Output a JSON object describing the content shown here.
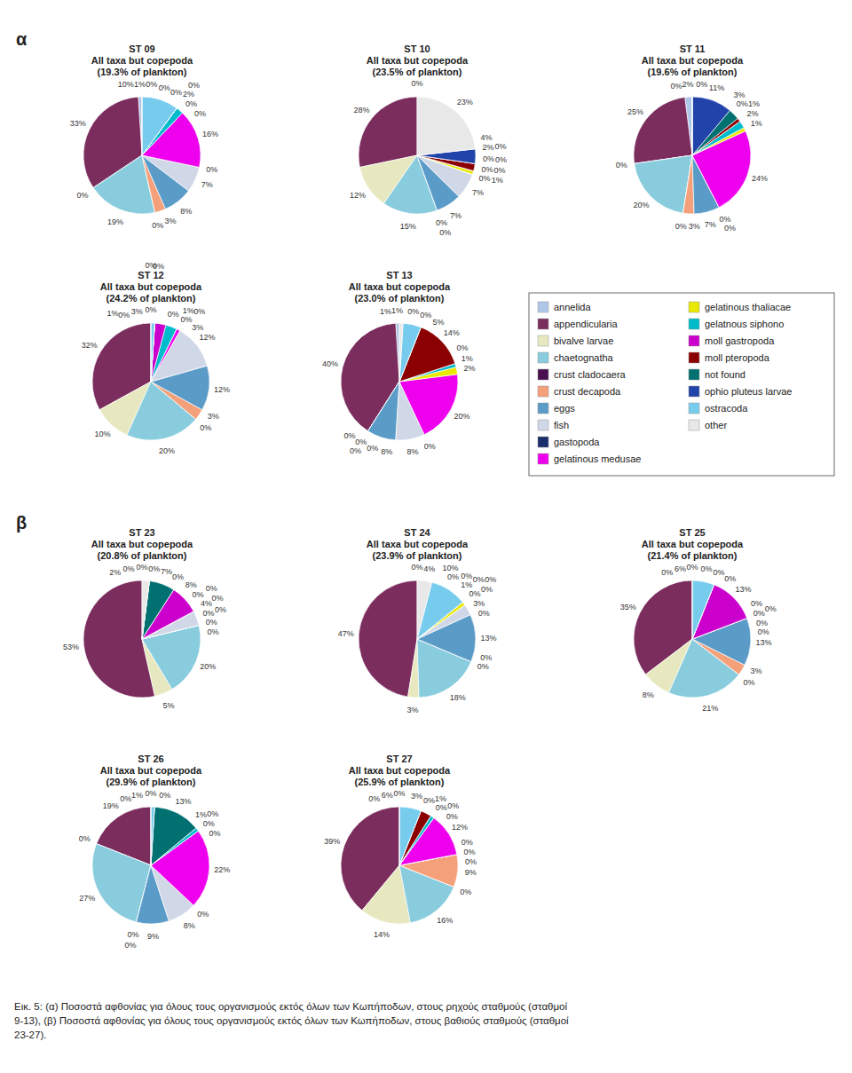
{
  "chart_data": [
    {
      "type": "pie",
      "title": "ST 09",
      "subtitle": "All taxa but copepoda\n(19.3% of plankton)",
      "categories": [
        "annelida",
        "appendicularia",
        "bivalve larvae",
        "chaetognatha",
        "crust cladocaera",
        "crust decapoda",
        "eggs",
        "fish",
        "gastopoda",
        "gelatinous medusae",
        "gelatinous thaliacae",
        "gelatnous siphono",
        "moll gastropoda",
        "moll pteropoda",
        "not found",
        "ophio pluteus larvae",
        "ostracoda",
        "other"
      ],
      "values": [
        1,
        33,
        0,
        19,
        0,
        3,
        8,
        7,
        0,
        16,
        0,
        2,
        0,
        0,
        0,
        0,
        10,
        0
      ],
      "value_labels": [
        "1%",
        "33%",
        "0%",
        "19%",
        "0%",
        "3%",
        "8%",
        "7%",
        "0%",
        "16%",
        "0%",
        "2%",
        "0%",
        "0%",
        "0%",
        "0%",
        "10%",
        "0%"
      ],
      "colors": [
        "#aec6e8",
        "#7b2d5e",
        "#e8e8c0",
        "#88ccdd",
        "#4a1050",
        "#f4a07a",
        "#5b9bc8",
        "#d0d8e8",
        "#1a2e6b",
        "#ee00ee",
        "#e8e800",
        "#00bbcc",
        "#cc00cc",
        "#8b0000",
        "#007070",
        "#2244aa",
        "#77ccee",
        "#e8e8e8"
      ],
      "data_labels": true,
      "legend": "right",
      "annotations": [
        "α"
      ]
    },
    {
      "type": "pie",
      "title": "ST 10",
      "subtitle": "All taxa but copepoda\n(23.5% of plankton)",
      "categories": [
        "annelida",
        "appendicularia",
        "bivalve larvae",
        "chaetognatha",
        "crust cladocaera",
        "crust decapoda",
        "eggs",
        "fish",
        "gastopoda",
        "gelatinous medusae",
        "gelatinous thaliacae",
        "gelatnous siphono",
        "moll gastropoda",
        "moll pteropoda",
        "not found",
        "ophio pluteus larvae",
        "ostracoda",
        "other"
      ],
      "values": [
        0,
        28,
        12,
        15,
        0,
        0,
        7,
        7,
        0,
        0,
        1,
        0,
        0,
        2,
        0,
        4,
        0,
        23
      ],
      "value_labels": [
        "0%",
        "28%",
        "12%",
        "15%",
        "0%",
        "0%",
        "7%",
        "7%",
        "0%",
        "0%",
        "1%",
        "0%",
        "0%",
        "2%",
        "0%",
        "4%",
        "0%",
        "23%"
      ],
      "colors": [
        "#aec6e8",
        "#7b2d5e",
        "#e8e8c0",
        "#88ccdd",
        "#4a1050",
        "#f4a07a",
        "#5b9bc8",
        "#d0d8e8",
        "#1a2e6b",
        "#ee00ee",
        "#e8e800",
        "#00bbcc",
        "#cc00cc",
        "#8b0000",
        "#007070",
        "#2244aa",
        "#77ccee",
        "#e8e8e8"
      ],
      "data_labels": true
    },
    {
      "type": "pie",
      "title": "ST 11",
      "subtitle": "All taxa but copepoda\n(19.6% of plankton)",
      "categories": [
        "annelida",
        "appendicularia",
        "bivalve larvae",
        "chaetognatha",
        "crust cladocaera",
        "crust decapoda",
        "eggs",
        "fish",
        "gastopoda",
        "gelatinous medusae",
        "gelatinous thaliacae",
        "gelatnous siphono",
        "moll gastropoda",
        "moll pteropoda",
        "not found",
        "ophio pluteus larvae",
        "ostracoda",
        "other"
      ],
      "values": [
        2,
        25,
        0,
        20,
        0,
        3,
        7,
        0,
        0,
        24,
        1,
        2,
        0,
        1,
        3,
        11,
        0,
        0
      ],
      "value_labels": [
        "2%",
        "25%",
        "0%",
        "20%",
        "0%",
        "3%",
        "7%",
        "0%",
        "0%",
        "24%",
        "1%",
        "2%",
        "0%",
        "1%",
        "3%",
        "11%",
        "0%",
        "0%"
      ],
      "colors": [
        "#aec6e8",
        "#7b2d5e",
        "#e8e8c0",
        "#88ccdd",
        "#4a1050",
        "#f4a07a",
        "#5b9bc8",
        "#d0d8e8",
        "#1a2e6b",
        "#ee00ee",
        "#e8e800",
        "#00bbcc",
        "#cc00cc",
        "#8b0000",
        "#007070",
        "#2244aa",
        "#77ccee",
        "#e8e8e8"
      ],
      "data_labels": true
    },
    {
      "type": "pie",
      "title": "ST 12",
      "subtitle": "All taxa but copepoda\n(24.2% of plankton)",
      "categories": [
        "annelida",
        "appendicularia",
        "bivalve larvae",
        "chaetognatha",
        "crust cladocaera",
        "crust decapoda",
        "eggs",
        "fish",
        "gastopoda",
        "gelatinous medusae",
        "gelatinous thaliacae",
        "gelatnous siphono",
        "moll gastropoda",
        "moll pteropoda",
        "not found",
        "ophio pluteus larvae",
        "ostracoda",
        "other"
      ],
      "values": [
        0,
        32,
        10,
        20,
        0,
        3,
        12,
        12,
        0,
        1,
        0,
        3,
        3,
        0,
        0,
        0,
        1,
        0
      ],
      "value_labels": [
        "0%",
        "32%",
        "10%",
        "20%",
        "0%",
        "3%",
        "12%",
        "12%",
        "0%",
        "1%",
        "0%",
        "3%",
        "3%",
        "0%",
        "0%",
        "0%",
        "1%",
        "0%"
      ],
      "colors": [
        "#aec6e8",
        "#7b2d5e",
        "#e8e8c0",
        "#88ccdd",
        "#4a1050",
        "#f4a07a",
        "#5b9bc8",
        "#d0d8e8",
        "#1a2e6b",
        "#ee00ee",
        "#e8e800",
        "#00bbcc",
        "#cc00cc",
        "#8b0000",
        "#007070",
        "#2244aa",
        "#77ccee",
        "#e8e8e8"
      ],
      "data_labels": true
    },
    {
      "type": "pie",
      "title": "ST 13",
      "subtitle": "All taxa but copepoda\n(23.0% of plankton)",
      "categories": [
        "annelida",
        "appendicularia",
        "bivalve larvae",
        "chaetognatha",
        "crust cladocaera",
        "crust decapoda",
        "eggs",
        "fish",
        "gastopoda",
        "gelatinous medusae",
        "gelatinous thaliacae",
        "gelatnous siphono",
        "moll gastropoda",
        "moll pteropoda",
        "not found",
        "ophio pluteus larvae",
        "ostracoda",
        "other"
      ],
      "values": [
        1,
        40,
        0,
        0,
        0,
        0,
        8,
        8,
        0,
        20,
        2,
        1,
        0,
        14,
        0,
        0,
        5,
        1
      ],
      "value_labels": [
        "1%",
        "40%",
        "0%",
        "0%",
        "0%",
        "0%",
        "8%",
        "8%",
        "0%",
        "20%",
        "2%",
        "1%",
        "0%",
        "14%",
        "0%",
        "0%",
        "5%",
        "1%"
      ],
      "colors": [
        "#aec6e8",
        "#7b2d5e",
        "#e8e8c0",
        "#88ccdd",
        "#4a1050",
        "#f4a07a",
        "#5b9bc8",
        "#d0d8e8",
        "#1a2e6b",
        "#ee00ee",
        "#e8e800",
        "#00bbcc",
        "#cc00cc",
        "#8b0000",
        "#007070",
        "#2244aa",
        "#77ccee",
        "#e8e8e8"
      ],
      "data_labels": true
    },
    {
      "type": "pie",
      "title": "ST 23",
      "subtitle": "All taxa but copepoda\n(20.8% of plankton)",
      "categories": [
        "annelida",
        "appendicularia",
        "bivalve larvae",
        "chaetognatha",
        "crust cladocaera",
        "crust decapoda",
        "eggs",
        "fish",
        "gastopoda",
        "gelatinous medusae",
        "gelatinous thaliacae",
        "gelatnous siphono",
        "moll gastropoda",
        "moll pteropoda",
        "not found",
        "ophio pluteus larvae",
        "ostracoda",
        "other"
      ],
      "values": [
        0,
        53,
        5,
        20,
        0,
        0,
        0,
        4,
        0,
        0,
        0,
        0,
        8,
        0,
        7,
        0,
        0,
        2
      ],
      "value_labels": [
        "0%",
        "53%",
        "5%",
        "20%",
        "0%",
        "0%",
        "0%",
        "4%",
        "0%",
        "0%",
        "0%",
        "0%",
        "8%",
        "0%",
        "7%",
        "0%",
        "0%",
        "2%"
      ],
      "colors": [
        "#aec6e8",
        "#7b2d5e",
        "#e8e8c0",
        "#88ccdd",
        "#4a1050",
        "#f4a07a",
        "#5b9bc8",
        "#d0d8e8",
        "#1a2e6b",
        "#ee00ee",
        "#e8e800",
        "#00bbcc",
        "#cc00cc",
        "#8b0000",
        "#007070",
        "#2244aa",
        "#77ccee",
        "#e8e8e8"
      ],
      "data_labels": true,
      "annotations": [
        "β"
      ]
    },
    {
      "type": "pie",
      "title": "ST 24",
      "subtitle": "All taxa but copepoda\n(23.9% of plankton)",
      "categories": [
        "annelida",
        "appendicularia",
        "bivalve larvae",
        "chaetognatha",
        "crust cladocaera",
        "crust decapoda",
        "eggs",
        "fish",
        "gastopoda",
        "gelatinous medusae",
        "gelatinous thaliacae",
        "gelatnous siphono",
        "moll gastropoda",
        "moll pteropoda",
        "not found",
        "ophio pluteus larvae",
        "ostracoda",
        "other"
      ],
      "values": [
        0,
        47,
        3,
        18,
        0,
        0,
        13,
        3,
        0,
        0,
        1,
        0,
        0,
        0,
        0,
        0,
        10,
        4
      ],
      "value_labels": [
        "0%",
        "47%",
        "3%",
        "18%",
        "0%",
        "0%",
        "13%",
        "3%",
        "0%",
        "0%",
        "1%",
        "0%",
        "0%",
        "0%",
        "0%",
        "0%",
        "10%",
        "4%"
      ],
      "colors": [
        "#aec6e8",
        "#7b2d5e",
        "#e8e8c0",
        "#88ccdd",
        "#4a1050",
        "#f4a07a",
        "#5b9bc8",
        "#d0d8e8",
        "#1a2e6b",
        "#ee00ee",
        "#e8e800",
        "#00bbcc",
        "#cc00cc",
        "#8b0000",
        "#007070",
        "#2244aa",
        "#77ccee",
        "#e8e8e8"
      ],
      "data_labels": true
    },
    {
      "type": "pie",
      "title": "ST 25",
      "subtitle": "All taxa but copepoda\n(21.4% of plankton)",
      "categories": [
        "annelida",
        "appendicularia",
        "bivalve larvae",
        "chaetognatha",
        "crust cladocaera",
        "crust decapoda",
        "eggs",
        "fish",
        "gastopoda",
        "gelatinous medusae",
        "gelatinous thaliacae",
        "gelatnous siphono",
        "moll gastropoda",
        "moll pteropoda",
        "not found",
        "ophio pluteus larvae",
        "ostracoda",
        "other"
      ],
      "values": [
        0,
        35,
        8,
        21,
        0,
        3,
        13,
        0,
        0,
        0,
        0,
        0,
        13,
        0,
        0,
        0,
        6,
        0
      ],
      "value_labels": [
        "0%",
        "35%",
        "8%",
        "21%",
        "0%",
        "3%",
        "13%",
        "0%",
        "0%",
        "0%",
        "0%",
        "0%",
        "13%",
        "0%",
        "0%",
        "0%",
        "6%",
        "0%"
      ],
      "colors": [
        "#aec6e8",
        "#7b2d5e",
        "#e8e8c0",
        "#88ccdd",
        "#4a1050",
        "#f4a07a",
        "#5b9bc8",
        "#d0d8e8",
        "#1a2e6b",
        "#ee00ee",
        "#e8e800",
        "#00bbcc",
        "#cc00cc",
        "#8b0000",
        "#007070",
        "#2244aa",
        "#77ccee",
        "#e8e8e8"
      ],
      "data_labels": true
    },
    {
      "type": "pie",
      "title": "ST 26",
      "subtitle": "All taxa but copepoda\n(29.9% of plankton)",
      "categories": [
        "annelida",
        "appendicularia",
        "bivalve larvae",
        "chaetognatha",
        "crust cladocaera",
        "crust decapoda",
        "eggs",
        "fish",
        "gastopoda",
        "gelatinous medusae",
        "gelatinous thaliacae",
        "gelatnous siphono",
        "moll gastropoda",
        "moll pteropoda",
        "not found",
        "ophio pluteus larvae",
        "ostracoda",
        "other"
      ],
      "values": [
        0,
        19,
        0,
        27,
        0,
        0,
        9,
        8,
        0,
        22,
        0,
        1,
        0,
        0,
        13,
        0,
        1,
        0
      ],
      "value_labels": [
        "0%",
        "19%",
        "0%",
        "27%",
        "0%",
        "0%",
        "9%",
        "8%",
        "0%",
        "22%",
        "0%",
        "1%",
        "0%",
        "0%",
        "13%",
        "0%",
        "1%",
        "0%"
      ],
      "colors": [
        "#aec6e8",
        "#7b2d5e",
        "#e8e8c0",
        "#88ccdd",
        "#4a1050",
        "#f4a07a",
        "#5b9bc8",
        "#d0d8e8",
        "#1a2e6b",
        "#ee00ee",
        "#e8e800",
        "#00bbcc",
        "#cc00cc",
        "#8b0000",
        "#007070",
        "#2244aa",
        "#77ccee",
        "#e8e8e8"
      ],
      "data_labels": true
    },
    {
      "type": "pie",
      "title": "ST 27",
      "subtitle": "All taxa but copepoda\n(25.9% of plankton)",
      "categories": [
        "annelida",
        "appendicularia",
        "bivalve larvae",
        "chaetognatha",
        "crust cladocaera",
        "crust decapoda",
        "eggs",
        "fish",
        "gastopoda",
        "gelatinous medusae",
        "gelatinous thaliacae",
        "gelatnous siphono",
        "moll gastropoda",
        "moll pteropoda",
        "not found",
        "ophio pluteus larvae",
        "ostracoda",
        "other"
      ],
      "values": [
        0,
        39,
        14,
        16,
        0,
        9,
        0,
        0,
        0,
        12,
        0,
        1,
        0,
        3,
        0,
        0,
        6,
        0
      ],
      "value_labels": [
        "0%",
        "39%",
        "14%",
        "16%",
        "0%",
        "9%",
        "0%",
        "0%",
        "0%",
        "12%",
        "0%",
        "1%",
        "0%",
        "3%",
        "0%",
        "0%",
        "6%",
        "0%"
      ],
      "colors": [
        "#aec6e8",
        "#7b2d5e",
        "#e8e8c0",
        "#88ccdd",
        "#4a1050",
        "#f4a07a",
        "#5b9bc8",
        "#d0d8e8",
        "#1a2e6b",
        "#ee00ee",
        "#e8e800",
        "#00bbcc",
        "#cc00cc",
        "#8b0000",
        "#007070",
        "#2244aa",
        "#77ccee",
        "#e8e8e8"
      ],
      "data_labels": true
    }
  ],
  "caption": "Εικ. 5: (α) Ποσοστά αφθονίας για όλους τους οργανισμούς εκτός όλων των Κωπήποδων, στους ρηχούς σταθμούς (σταθμοί\n9-13), (β) Ποσοστά αφθονίας για όλους τους οργανισμούς εκτός όλων των Κωπήποδων, στους βαθιούς σταθμούς (σταθμοί\n23-27)."
}
